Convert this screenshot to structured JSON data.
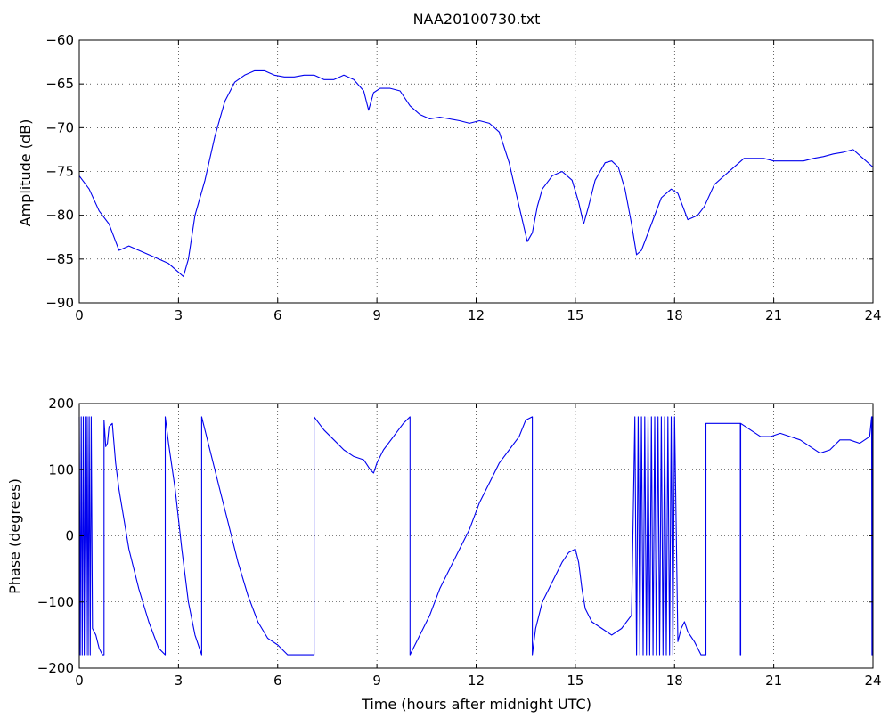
{
  "chart_data": [
    {
      "type": "line",
      "title": "NAA20100730.txt",
      "xlabel": "",
      "ylabel": "Amplitude (dB)",
      "xlim": [
        0,
        24
      ],
      "ylim": [
        -90,
        -60
      ],
      "xticks": [
        0,
        3,
        6,
        9,
        12,
        15,
        18,
        21,
        24
      ],
      "yticks": [
        -90,
        -85,
        -80,
        -75,
        -70,
        -65,
        -60
      ],
      "xtick_labels": [
        "0",
        "3",
        "6",
        "9",
        "12",
        "15",
        "18",
        "21",
        "24"
      ],
      "ytick_labels": [
        "−90",
        "−85",
        "−80",
        "−75",
        "−70",
        "−65",
        "−60"
      ],
      "grid": true,
      "color": "#0000ee",
      "series": [
        {
          "x": [
            0,
            0.3,
            0.6,
            0.9,
            1.2,
            1.5,
            1.8,
            2.1,
            2.4,
            2.7,
            3.0,
            3.15,
            3.3,
            3.5,
            3.8,
            4.1,
            4.4,
            4.7,
            5.0,
            5.3,
            5.6,
            5.9,
            6.2,
            6.5,
            6.8,
            7.1,
            7.4,
            7.7,
            8.0,
            8.3,
            8.6,
            8.75,
            8.9,
            9.1,
            9.4,
            9.7,
            10.0,
            10.3,
            10.6,
            10.9,
            11.2,
            11.5,
            11.8,
            12.1,
            12.4,
            12.7,
            13.0,
            13.3,
            13.55,
            13.7,
            13.85,
            14.0,
            14.3,
            14.6,
            14.9,
            15.1,
            15.25,
            15.4,
            15.6,
            15.9,
            16.1,
            16.3,
            16.5,
            16.7,
            16.85,
            17.0,
            17.3,
            17.6,
            17.9,
            18.1,
            18.4,
            18.7,
            18.9,
            19.2,
            19.5,
            19.8,
            20.1,
            20.4,
            20.7,
            21.0,
            21.3,
            21.6,
            21.9,
            22.2,
            22.5,
            22.8,
            23.1,
            23.4,
            23.7,
            24.0
          ],
          "y": [
            -75.5,
            -77,
            -79.5,
            -81,
            -84,
            -83.5,
            -84,
            -84.5,
            -85,
            -85.5,
            -86.5,
            -87,
            -85,
            -80,
            -76,
            -71,
            -67,
            -64.8,
            -64,
            -63.5,
            -63.5,
            -64,
            -64.2,
            -64.2,
            -64,
            -64,
            -64.5,
            -64.5,
            -64,
            -64.5,
            -65.8,
            -68,
            -66,
            -65.5,
            -65.5,
            -65.8,
            -67.5,
            -68.5,
            -69,
            -68.8,
            -69,
            -69.2,
            -69.5,
            -69.2,
            -69.5,
            -70.5,
            -74,
            -79,
            -83,
            -82,
            -79,
            -77,
            -75.5,
            -75,
            -76,
            -78.5,
            -81,
            -79,
            -76,
            -74,
            -73.8,
            -74.5,
            -77,
            -81,
            -84.5,
            -84,
            -81,
            -78,
            -77,
            -77.5,
            -80.5,
            -80,
            -79,
            -76.5,
            -75.5,
            -74.5,
            -73.5,
            -73.5,
            -73.5,
            -73.8,
            -73.8,
            -73.8,
            -73.8,
            -73.5,
            -73.3,
            -73,
            -72.8,
            -72.5,
            -73.5,
            -74.5
          ]
        }
      ]
    },
    {
      "type": "line",
      "title": "",
      "xlabel": "Time (hours after midnight UTC)",
      "ylabel": "Phase (degrees)",
      "xlim": [
        0,
        24
      ],
      "ylim": [
        -200,
        200
      ],
      "xticks": [
        0,
        3,
        6,
        9,
        12,
        15,
        18,
        21,
        24
      ],
      "yticks": [
        -200,
        -100,
        0,
        100,
        200
      ],
      "xtick_labels": [
        "0",
        "3",
        "6",
        "9",
        "12",
        "15",
        "18",
        "21",
        "24"
      ],
      "ytick_labels": [
        "−200",
        "−100",
        "0",
        "100",
        "200"
      ],
      "grid": true,
      "color": "#0000ee",
      "series": [
        {
          "x": [
            0,
            0.03,
            0.06,
            0.09,
            0.12,
            0.15,
            0.18,
            0.21,
            0.24,
            0.27,
            0.3,
            0.33,
            0.36,
            0.4,
            0.5,
            0.6,
            0.7,
            0.75,
            0.75,
            0.8,
            0.85,
            0.9,
            1.0,
            1.1,
            1.2,
            1.3,
            1.5,
            1.8,
            2.1,
            2.4,
            2.6,
            2.6,
            2.7,
            2.9,
            3.1,
            3.3,
            3.5,
            3.7,
            3.7,
            3.9,
            4.2,
            4.5,
            4.8,
            5.1,
            5.4,
            5.7,
            6.0,
            6.3,
            6.6,
            6.9,
            7.1,
            7.1,
            7.4,
            7.7,
            8.0,
            8.3,
            8.6,
            8.8,
            8.9,
            9.0,
            9.2,
            9.5,
            9.8,
            10.0,
            10.0,
            10.3,
            10.6,
            10.9,
            11.2,
            11.5,
            11.8,
            12.1,
            12.4,
            12.7,
            13.0,
            13.3,
            13.5,
            13.7,
            13.7,
            13.8,
            14.0,
            14.2,
            14.4,
            14.6,
            14.8,
            15.0,
            15.1,
            15.2,
            15.3,
            15.5,
            15.8,
            16.1,
            16.4,
            16.7,
            16.8,
            16.85,
            16.9,
            16.95,
            17.0,
            17.05,
            17.1,
            17.15,
            17.2,
            17.25,
            17.3,
            17.35,
            17.4,
            17.45,
            17.5,
            17.55,
            17.6,
            17.65,
            17.7,
            17.75,
            17.8,
            17.85,
            17.9,
            17.95,
            18.0,
            18.1,
            18.2,
            18.3,
            18.4,
            18.6,
            18.8,
            18.95,
            18.95,
            19.2,
            19.5,
            19.8,
            19.99,
            19.99,
            20.0,
            20.0,
            20.3,
            20.6,
            20.9,
            21.2,
            21.5,
            21.8,
            22.1,
            22.4,
            22.7,
            23.0,
            23.3,
            23.6,
            23.9,
            23.96,
            23.97,
            23.98,
            23.99,
            24.0
          ],
          "y": [
            180,
            -180,
            180,
            -180,
            180,
            -180,
            180,
            -180,
            180,
            -180,
            180,
            -180,
            180,
            -140,
            -150,
            -170,
            -180,
            -180,
            175,
            135,
            140,
            165,
            170,
            110,
            70,
            40,
            -20,
            -80,
            -130,
            -170,
            -180,
            180,
            140,
            70,
            -20,
            -100,
            -150,
            -180,
            180,
            140,
            80,
            20,
            -40,
            -90,
            -130,
            -155,
            -165,
            -180,
            -180,
            -180,
            -180,
            180,
            160,
            145,
            130,
            120,
            115,
            100,
            95,
            110,
            130,
            150,
            170,
            180,
            -180,
            -150,
            -120,
            -80,
            -50,
            -20,
            10,
            50,
            80,
            110,
            130,
            150,
            175,
            180,
            -180,
            -140,
            -100,
            -80,
            -60,
            -40,
            -25,
            -20,
            -40,
            -80,
            -110,
            -130,
            -140,
            -150,
            -140,
            -120,
            180,
            -180,
            180,
            -180,
            180,
            -180,
            180,
            -180,
            180,
            -180,
            180,
            -180,
            180,
            -180,
            180,
            -180,
            180,
            -180,
            180,
            -180,
            180,
            -180,
            180,
            -180,
            180,
            -160,
            -140,
            -130,
            -145,
            -160,
            -180,
            -180,
            170,
            170,
            170,
            170,
            170,
            -180,
            -180,
            170,
            160,
            150,
            150,
            155,
            150,
            145,
            135,
            125,
            130,
            145,
            145,
            140,
            150,
            180,
            -180,
            180,
            -180,
            180
          ]
        }
      ]
    }
  ]
}
